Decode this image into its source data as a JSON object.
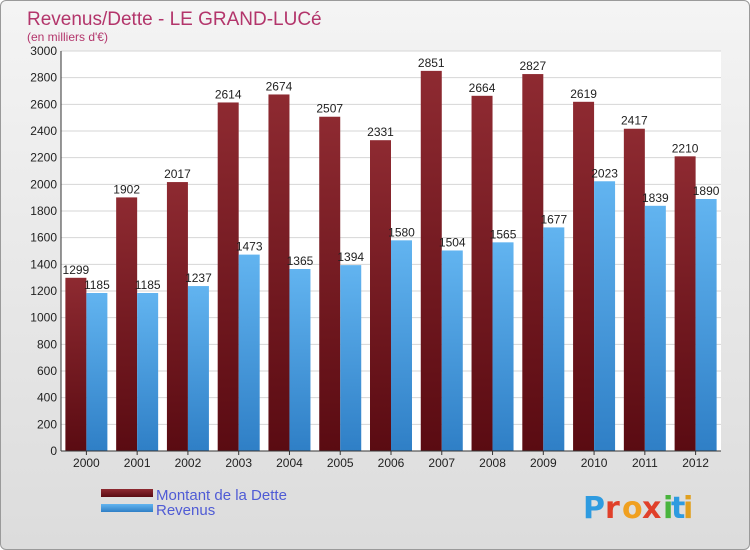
{
  "chart_data": {
    "type": "bar",
    "title": "Revenus/Dette - LE GRAND-LUCé",
    "subtitle": "(en milliers d'€)",
    "categories": [
      "2000",
      "2001",
      "2002",
      "2003",
      "2004",
      "2005",
      "2006",
      "2007",
      "2008",
      "2009",
      "2010",
      "2011",
      "2012"
    ],
    "series": [
      {
        "name": "Montant de la Dette",
        "color": "#7a1a22",
        "values": [
          1299,
          1902,
          2017,
          2614,
          2674,
          2507,
          2331,
          2851,
          2664,
          2827,
          2619,
          2417,
          2210
        ]
      },
      {
        "name": "Revenus",
        "color": "#4aa3e6",
        "values": [
          1185,
          1185,
          1237,
          1473,
          1365,
          1394,
          1580,
          1504,
          1565,
          1677,
          2023,
          1839,
          1890
        ]
      }
    ],
    "ylim": [
      0,
      3000
    ],
    "yticks": [
      0,
      200,
      400,
      600,
      800,
      1000,
      1200,
      1400,
      1600,
      1800,
      2000,
      2200,
      2400,
      2600,
      2800,
      3000
    ],
    "grid": true,
    "legend_position": "bottom-left"
  },
  "logo": {
    "text": "Proxiti",
    "letters": [
      "P",
      "r",
      "o",
      "x",
      "i",
      "t",
      "i"
    ],
    "colors": [
      "#2e9be0",
      "#e0402a",
      "#f0a020",
      "#e0402a",
      "#49b43d",
      "#2e9be0",
      "#e0a020"
    ]
  }
}
